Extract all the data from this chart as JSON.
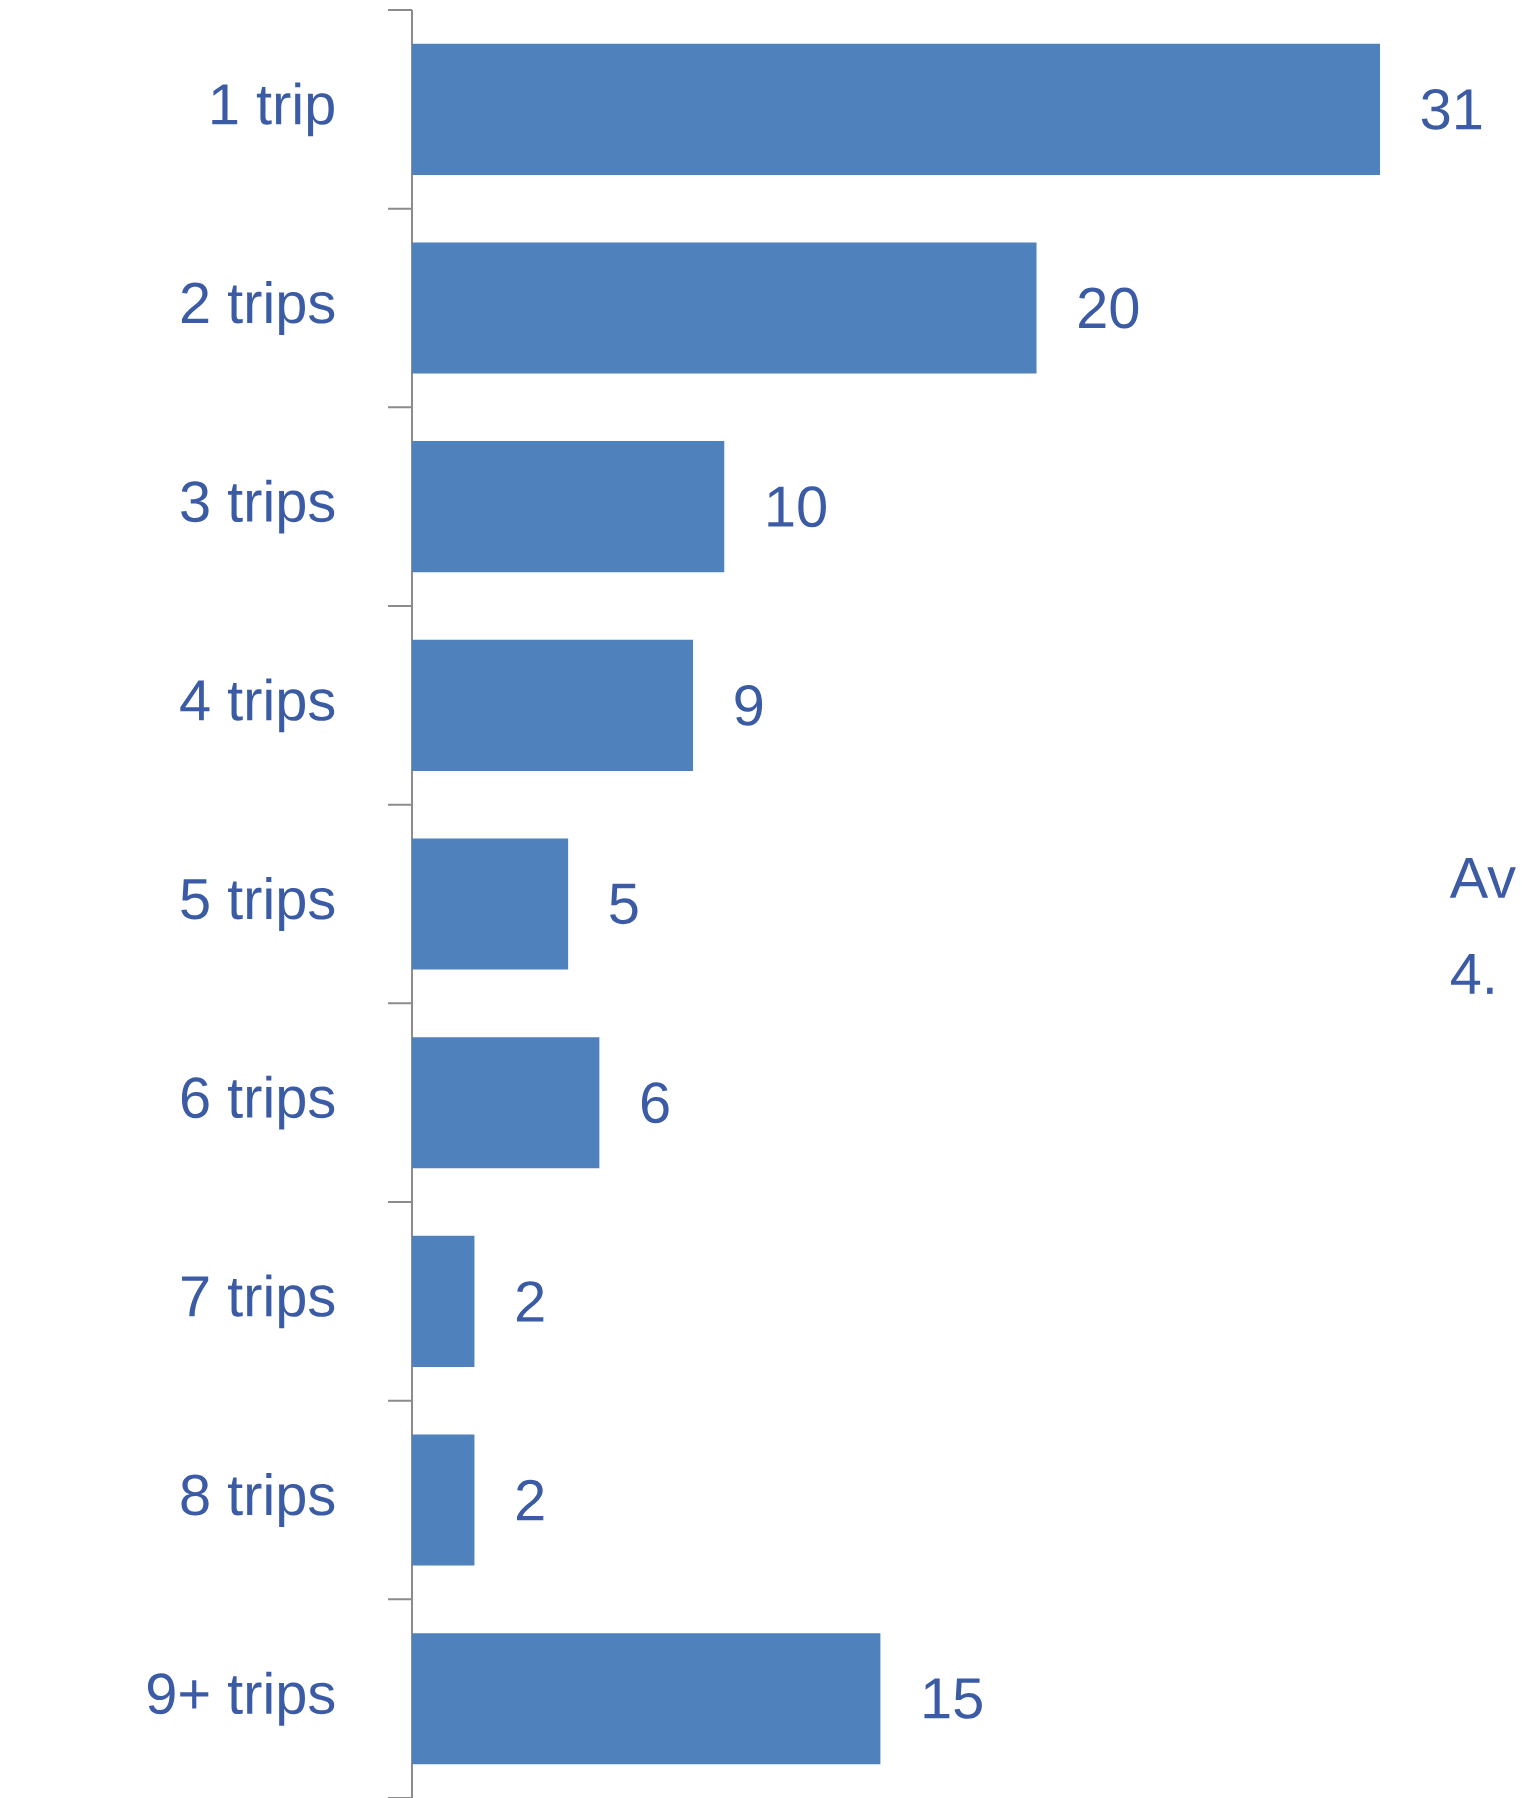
{
  "chart_data": {
    "type": "bar",
    "orientation": "horizontal",
    "categories": [
      "1 trip",
      "2 trips",
      "3 trips",
      "4 trips",
      "5 trips",
      "6 trips",
      "7 trips",
      "8 trips",
      "9+ trips"
    ],
    "values": [
      31,
      20,
      10,
      9,
      5,
      6,
      2,
      2,
      15
    ],
    "color": "#4f81bd",
    "data_labels": true,
    "annotations": [
      "Av",
      "4."
    ]
  }
}
